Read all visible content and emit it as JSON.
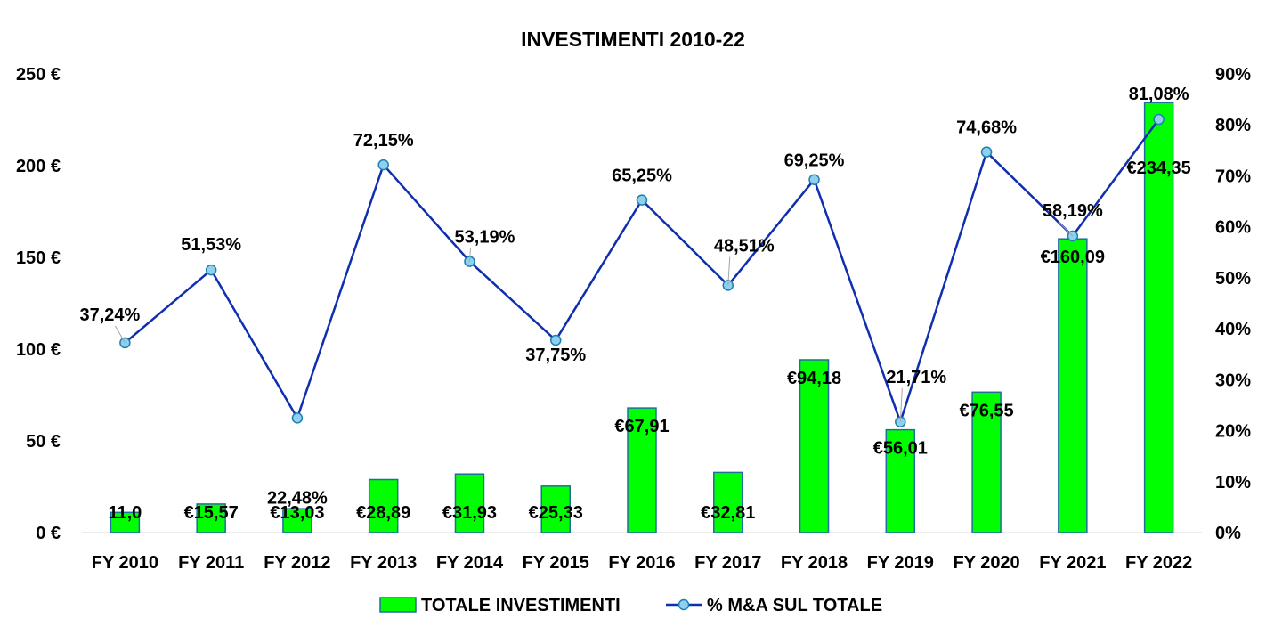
{
  "chart_data": {
    "type": "bar+line",
    "title": "INVESTIMENTI 2010-22",
    "categories": [
      "FY 2010",
      "FY 2011",
      "FY 2012",
      "FY 2013",
      "FY 2014",
      "FY 2015",
      "FY 2016",
      "FY 2017",
      "FY 2018",
      "FY 2019",
      "FY 2020",
      "FY 2021",
      "FY 2022"
    ],
    "series": [
      {
        "name": "TOTALE INVESTIMENTI",
        "kind": "bar",
        "axis": "left",
        "color": "#00ff00",
        "values": [
          11.0,
          15.57,
          13.03,
          28.89,
          31.93,
          25.33,
          67.91,
          32.81,
          94.18,
          56.01,
          76.55,
          160.09,
          234.35
        ],
        "labels": [
          "11,0",
          "€15,57",
          "€13,03",
          "€28,89",
          "€31,93",
          "€25,33",
          "€67,91",
          "€32,81",
          "€94,18",
          "€56,01",
          "€76,55",
          "€160,09",
          "€234,35"
        ]
      },
      {
        "name": "% M&A SUL TOTALE",
        "kind": "line",
        "axis": "right",
        "color": "#0f2fb0",
        "marker_color": "#8fd0ee",
        "values": [
          37.24,
          51.53,
          22.48,
          72.15,
          53.19,
          37.75,
          65.25,
          48.51,
          69.25,
          21.71,
          74.68,
          58.19,
          81.08
        ],
        "labels": [
          "37,24%",
          "51,53%",
          "22,48%",
          "72,15%",
          "53,19%",
          "37,75%",
          "65,25%",
          "48,51%",
          "69,25%",
          "21,71%",
          "74,68%",
          "58,19%",
          "81,08%"
        ]
      }
    ],
    "y_left": {
      "range": [
        0,
        250
      ],
      "ticks": [
        0,
        50,
        100,
        150,
        200,
        250
      ],
      "tick_labels": [
        "0 €",
        "50 €",
        "100 €",
        "150 €",
        "200 €",
        "250 €"
      ]
    },
    "y_right": {
      "range": [
        0,
        90
      ],
      "ticks": [
        0,
        10,
        20,
        30,
        40,
        50,
        60,
        70,
        80,
        90
      ],
      "tick_labels": [
        "0%",
        "10%",
        "20%",
        "30%",
        "40%",
        "50%",
        "60%",
        "70%",
        "80%",
        "90%"
      ]
    },
    "grid": false,
    "legend": "bottom"
  }
}
